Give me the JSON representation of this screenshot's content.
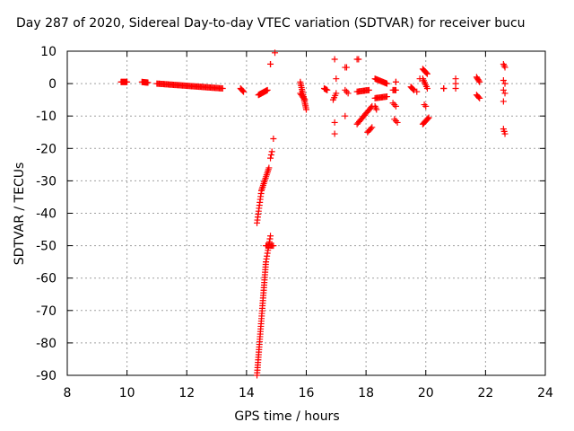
{
  "chart_data": {
    "type": "scatter",
    "title": "Day 287 of 2020, Sidereal Day-to-day VTEC variation (SDTVAR) for receiver bucu",
    "xlabel": "GPS time / hours",
    "ylabel": "SDTVAR / TECUs",
    "xlim": [
      8,
      24
    ],
    "ylim": [
      -90,
      10
    ],
    "xticks": [
      8,
      10,
      12,
      14,
      16,
      18,
      20,
      22,
      24
    ],
    "yticks": [
      10,
      0,
      -10,
      -20,
      -30,
      -40,
      -50,
      -60,
      -70,
      -80,
      -90
    ],
    "grid": true,
    "marker": "+",
    "color": "#ff0000",
    "segments": [
      {
        "x0": 9.8,
        "x1": 10.0,
        "y0": 0.5,
        "y1": 0.5,
        "n": 12
      },
      {
        "x0": 10.5,
        "x1": 10.7,
        "y0": 0.5,
        "y1": 0.3,
        "n": 10
      },
      {
        "x0": 11.0,
        "x1": 13.2,
        "y0": 0.0,
        "y1": -1.5,
        "n": 60
      },
      {
        "x0": 13.8,
        "x1": 13.9,
        "y0": -1.5,
        "y1": -2.5,
        "n": 5
      },
      {
        "x0": 14.4,
        "x1": 14.7,
        "y0": -3.5,
        "y1": -2.0,
        "n": 14
      },
      {
        "x0": 14.35,
        "x1": 14.65,
        "y0": -90,
        "y1": -55,
        "n": 45
      },
      {
        "x0": 14.65,
        "x1": 14.8,
        "y0": -55,
        "y1": -47,
        "n": 10
      },
      {
        "x0": 14.65,
        "x1": 14.9,
        "y0": -50,
        "y1": -50,
        "n": 8
      },
      {
        "x0": 14.35,
        "x1": 14.5,
        "y0": -43,
        "y1": -33,
        "n": 12
      },
      {
        "x0": 14.5,
        "x1": 14.75,
        "y0": -33,
        "y1": -26,
        "n": 14
      },
      {
        "x0": 14.8,
        "x1": 14.85,
        "y0": -23,
        "y1": -21,
        "n": 3
      },
      {
        "x0": 14.9,
        "x1": 14.9,
        "y0": -17,
        "y1": -17,
        "n": 1
      },
      {
        "x0": 14.8,
        "x1": 14.8,
        "y0": 6,
        "y1": 6,
        "n": 2
      },
      {
        "x0": 14.95,
        "x1": 14.95,
        "y0": 9.5,
        "y1": 9.5,
        "n": 1
      },
      {
        "x0": 15.8,
        "x1": 16.0,
        "y0": 0.5,
        "y1": -8,
        "n": 16
      },
      {
        "x0": 15.8,
        "x1": 15.95,
        "y0": -3,
        "y1": -5,
        "n": 6
      },
      {
        "x0": 16.6,
        "x1": 16.7,
        "y0": -1.5,
        "y1": -2,
        "n": 5
      },
      {
        "x0": 16.9,
        "x1": 17.0,
        "y0": -5,
        "y1": -3,
        "n": 4
      },
      {
        "x0": 16.95,
        "x1": 16.95,
        "y0": -12,
        "y1": -12,
        "n": 1
      },
      {
        "x0": 16.95,
        "x1": 16.95,
        "y0": -15.5,
        "y1": -15.5,
        "n": 1
      },
      {
        "x0": 16.95,
        "x1": 16.95,
        "y0": 7.5,
        "y1": 7.5,
        "n": 1
      },
      {
        "x0": 17.0,
        "x1": 17.0,
        "y0": 1.5,
        "y1": 1.5,
        "n": 1
      },
      {
        "x0": 17.3,
        "x1": 17.35,
        "y0": 5,
        "y1": 5,
        "n": 2
      },
      {
        "x0": 17.3,
        "x1": 17.4,
        "y0": -2,
        "y1": -3,
        "n": 3
      },
      {
        "x0": 17.3,
        "x1": 17.3,
        "y0": -10,
        "y1": -10,
        "n": 1
      },
      {
        "x0": 17.7,
        "x1": 17.75,
        "y0": 7.5,
        "y1": 7.5,
        "n": 2
      },
      {
        "x0": 17.7,
        "x1": 18.1,
        "y0": -2.5,
        "y1": -2.0,
        "n": 12
      },
      {
        "x0": 17.7,
        "x1": 18.2,
        "y0": -12.5,
        "y1": -7,
        "n": 15
      },
      {
        "x0": 18.05,
        "x1": 18.2,
        "y0": -15,
        "y1": -13.5,
        "n": 5
      },
      {
        "x0": 18.3,
        "x1": 18.7,
        "y0": 1.5,
        "y1": 0,
        "n": 14
      },
      {
        "x0": 18.3,
        "x1": 18.7,
        "y0": -4.5,
        "y1": -4.0,
        "n": 12
      },
      {
        "x0": 18.3,
        "x1": 18.35,
        "y0": -7,
        "y1": -8,
        "n": 3
      },
      {
        "x0": 18.9,
        "x1": 19.0,
        "y0": -2,
        "y1": -2,
        "n": 4
      },
      {
        "x0": 18.9,
        "x1": 19.0,
        "y0": -6,
        "y1": -7,
        "n": 3
      },
      {
        "x0": 18.95,
        "x1": 19.05,
        "y0": -11,
        "y1": -12,
        "n": 3
      },
      {
        "x0": 19.0,
        "x1": 19.0,
        "y0": 0.5,
        "y1": 0.5,
        "n": 2
      },
      {
        "x0": 19.5,
        "x1": 19.6,
        "y0": -1,
        "y1": -2,
        "n": 5
      },
      {
        "x0": 19.7,
        "x1": 19.7,
        "y0": -2.5,
        "y1": -2.5,
        "n": 1
      },
      {
        "x0": 19.8,
        "x1": 19.8,
        "y0": 1.5,
        "y1": 1.5,
        "n": 1
      },
      {
        "x0": 19.9,
        "x1": 20.05,
        "y0": 4.5,
        "y1": 3,
        "n": 6
      },
      {
        "x0": 19.9,
        "x1": 20.05,
        "y0": 1.5,
        "y1": -1.5,
        "n": 6
      },
      {
        "x0": 19.9,
        "x1": 20.1,
        "y0": -12.5,
        "y1": -10.5,
        "n": 8
      },
      {
        "x0": 19.95,
        "x1": 20.0,
        "y0": -6.5,
        "y1": -7,
        "n": 2
      },
      {
        "x0": 20.6,
        "x1": 20.6,
        "y0": -1.5,
        "y1": -1.5,
        "n": 2
      },
      {
        "x0": 21.0,
        "x1": 21.0,
        "y0": 1.5,
        "y1": -1.5,
        "n": 3
      },
      {
        "x0": 21.7,
        "x1": 21.8,
        "y0": 2,
        "y1": 0.5,
        "n": 5
      },
      {
        "x0": 21.7,
        "x1": 21.8,
        "y0": -3.5,
        "y1": -4.5,
        "n": 4
      },
      {
        "x0": 22.6,
        "x1": 22.65,
        "y0": 6,
        "y1": 5,
        "n": 3
      },
      {
        "x0": 22.6,
        "x1": 22.65,
        "y0": 1,
        "y1": 0,
        "n": 2
      },
      {
        "x0": 22.6,
        "x1": 22.65,
        "y0": -2,
        "y1": -3,
        "n": 2
      },
      {
        "x0": 22.6,
        "x1": 22.6,
        "y0": -5.5,
        "y1": -5.5,
        "n": 1
      },
      {
        "x0": 22.6,
        "x1": 22.65,
        "y0": -14,
        "y1": -15.5,
        "n": 3
      }
    ]
  }
}
